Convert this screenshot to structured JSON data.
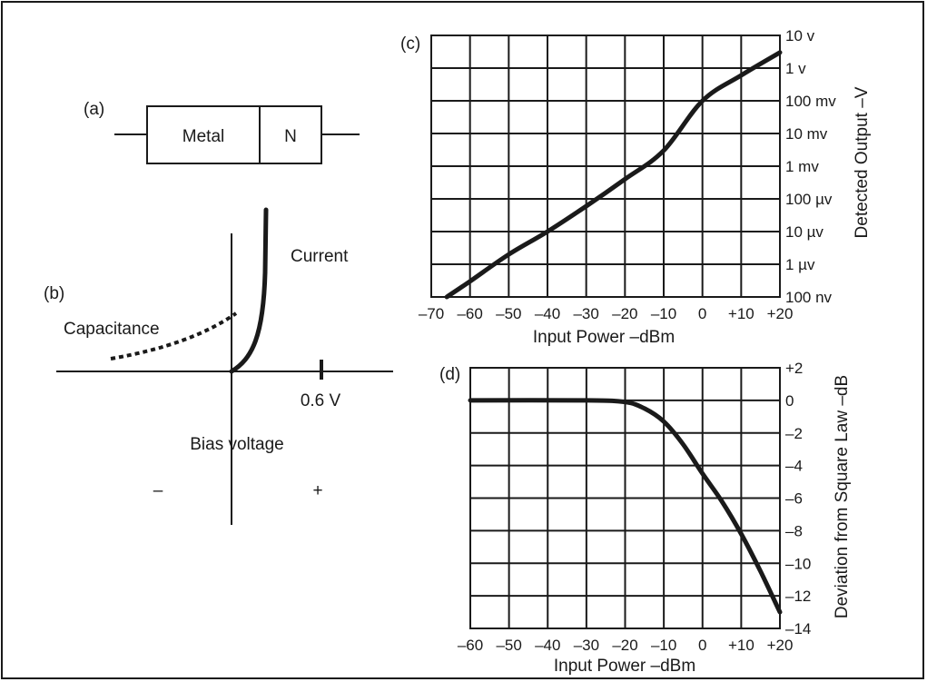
{
  "panels": {
    "a": {
      "tag": "(a)",
      "metal_label": "Metal",
      "n_label": "N"
    },
    "b": {
      "tag": "(b)",
      "current_label": "Current",
      "capacitance_label": "Capacitance",
      "voltage_mark_label": "0.6 V",
      "xaxis_label": "Bias voltage",
      "minus_sign": "–",
      "plus_sign": "+"
    },
    "c": {
      "tag": "(c)"
    },
    "d": {
      "tag": "(d)"
    }
  },
  "chart_data": [
    {
      "id": "c",
      "type": "line",
      "xlabel": "Input Power –dBm",
      "ylabel": "Detected Output –V",
      "xlim": [
        -70,
        20
      ],
      "x_ticks": [
        -70,
        -60,
        -50,
        -40,
        -30,
        -20,
        -10,
        0,
        10,
        20
      ],
      "x_tick_labels": [
        "–70",
        "–60",
        "–50",
        "–40",
        "–30",
        "–20",
        "–10",
        "0",
        "+10",
        "+20"
      ],
      "y_scale": "log",
      "ylim_volts": [
        1e-07,
        10
      ],
      "y_ticks_volts": [
        1e-07,
        1e-06,
        1e-05,
        0.0001,
        0.001,
        0.01,
        0.1,
        1,
        10
      ],
      "y_tick_labels": [
        "100 nv",
        "1 µv",
        "10 µv",
        "100 µv",
        "1 mv",
        "10 mv",
        "100 mv",
        "1 v",
        "10 v"
      ],
      "grid": true,
      "series": [
        {
          "x": [
            -66,
            -60,
            -50,
            -40,
            -30,
            -20,
            -10,
            0,
            10,
            20
          ],
          "y": [
            1e-07,
            3e-07,
            2e-06,
            1e-05,
            6e-05,
            0.0004,
            0.003,
            0.1,
            0.6,
            3
          ]
        }
      ]
    },
    {
      "id": "d",
      "type": "line",
      "xlabel": "Input Power –dBm",
      "ylabel": "Deviation from Square Law –dB",
      "xlim": [
        -60,
        20
      ],
      "x_ticks": [
        -60,
        -50,
        -40,
        -30,
        -20,
        -10,
        0,
        10,
        20
      ],
      "x_tick_labels": [
        "–60",
        "–50",
        "–40",
        "–30",
        "–20",
        "–10",
        "0",
        "+10",
        "+20"
      ],
      "ylim": [
        -14,
        2
      ],
      "y_ticks": [
        2,
        0,
        -2,
        -4,
        -6,
        -8,
        -10,
        -12,
        -14
      ],
      "y_tick_labels": [
        "+2",
        "0",
        "–2",
        "–4",
        "–6",
        "–8",
        "–10",
        "–12",
        "–14"
      ],
      "grid": true,
      "series": [
        {
          "x": [
            -60,
            -30,
            -20,
            -15,
            -10,
            -5,
            0,
            5,
            10,
            15,
            20
          ],
          "y": [
            0,
            0,
            -0.1,
            -0.5,
            -1.3,
            -2.7,
            -4.5,
            -6.2,
            -8.2,
            -10.5,
            -13
          ]
        }
      ]
    }
  ]
}
